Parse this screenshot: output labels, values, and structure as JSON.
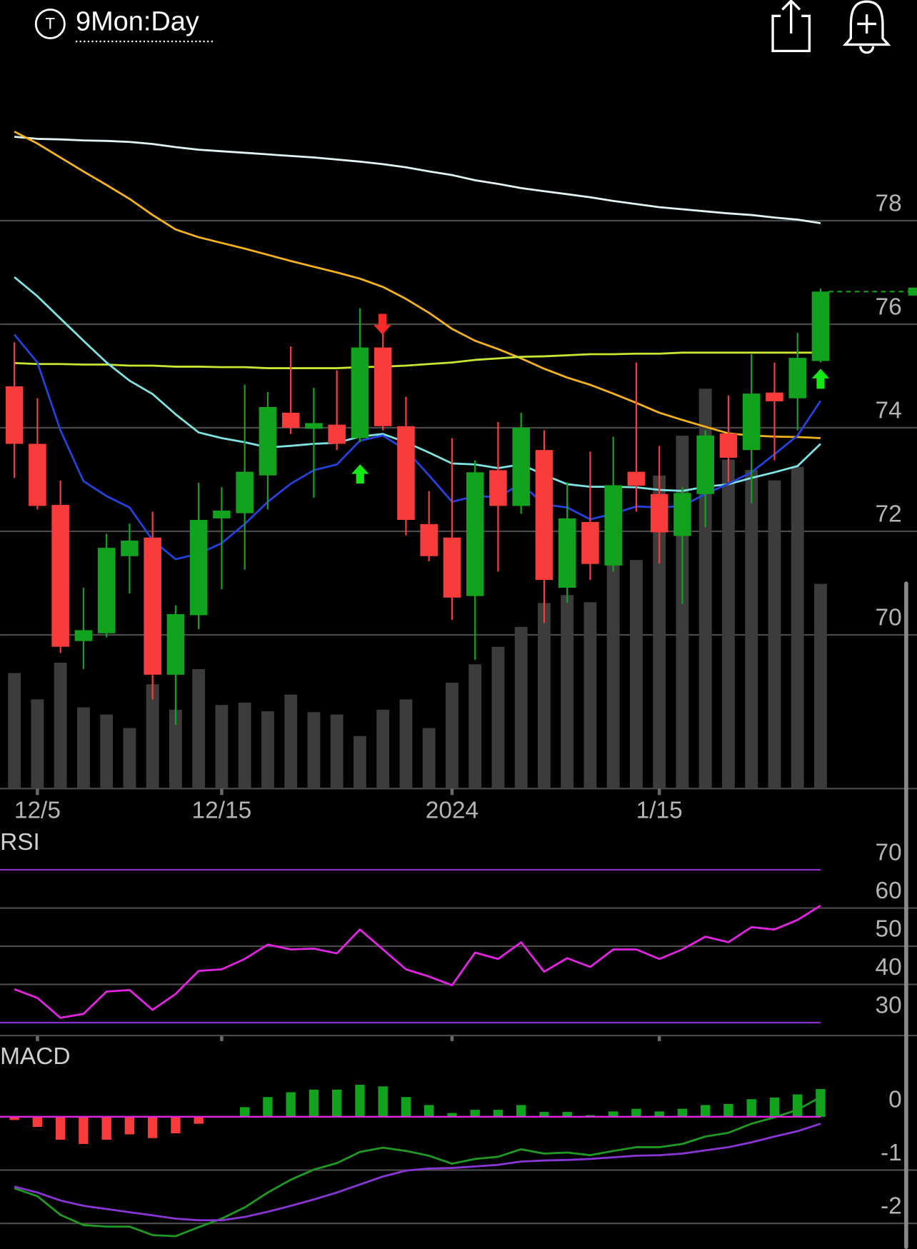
{
  "header": {
    "symbol_icon": "T",
    "timeframe": "9Mon:Day"
  },
  "chart_data": [
    {
      "type": "candlestick",
      "categories": [
        null,
        "12/5",
        null,
        null,
        null,
        null,
        null,
        null,
        null,
        "12/15",
        null,
        null,
        null,
        null,
        null,
        null,
        null,
        null,
        null,
        "2024",
        null,
        null,
        null,
        null,
        null,
        null,
        null,
        null,
        "1/15",
        null,
        null,
        null,
        null,
        null,
        null,
        null
      ],
      "open": [
        74.8,
        73.69,
        72.51,
        69.88,
        70.03,
        71.52,
        71.88,
        69.23,
        70.38,
        72.25,
        72.35,
        73.08,
        74.29,
        73.98,
        74.06,
        73.8,
        75.55,
        74.03,
        72.14,
        71.88,
        70.75,
        73.18,
        72.49,
        73.57,
        70.91,
        72.18,
        71.34,
        73.15,
        72.72,
        71.91,
        72.72,
        73.89,
        73.57,
        74.68,
        74.57,
        75.29
      ],
      "high": [
        75.65,
        74.57,
        72.98,
        70.91,
        71.95,
        72.15,
        72.38,
        70.57,
        72.94,
        72.85,
        74.83,
        74.69,
        75.57,
        74.77,
        75.11,
        76.31,
        75.95,
        74.6,
        72.78,
        73.8,
        73.37,
        74.11,
        74.29,
        73.95,
        72.95,
        73.54,
        73.83,
        75.26,
        73.65,
        72.85,
        73.95,
        74.62,
        75.42,
        75.26,
        75.83,
        76.69
      ],
      "low": [
        73.03,
        72.42,
        69.65,
        69.34,
        69.95,
        70.8,
        68.75,
        68.26,
        70.11,
        70.88,
        71.26,
        72.42,
        73.88,
        72.65,
        73.57,
        73.72,
        73.95,
        71.92,
        71.42,
        70.29,
        69.52,
        71.22,
        72.34,
        70.23,
        70.62,
        71.06,
        71.22,
        72.38,
        71.38,
        70.6,
        72.08,
        72.95,
        72.54,
        73.37,
        73.95,
        75.26
      ],
      "close": [
        73.69,
        72.49,
        69.77,
        70.09,
        71.68,
        71.82,
        69.23,
        70.4,
        72.22,
        72.4,
        73.15,
        74.4,
        74.0,
        74.09,
        73.69,
        75.55,
        74.03,
        72.22,
        71.52,
        70.72,
        73.14,
        72.49,
        74.0,
        71.06,
        72.25,
        71.37,
        72.89,
        72.88,
        71.98,
        72.74,
        73.85,
        73.42,
        74.66,
        74.51,
        75.35,
        76.63
      ],
      "volume": [
        145,
        112,
        158,
        102,
        93,
        76,
        131,
        99,
        150,
        105,
        108,
        97,
        118,
        96,
        93,
        66,
        99,
        112,
        76,
        133,
        156,
        178,
        203,
        233,
        243,
        234,
        283,
        287,
        393,
        443,
        502,
        413,
        400,
        387,
        404,
        257
      ],
      "up_color": "#12a31e",
      "down_color": "#f83b3b",
      "volume_color": "#3c3c3c",
      "series": [
        {
          "color": "#e2f3f3",
          "values": [
            79.62,
            79.58,
            79.57,
            79.55,
            79.54,
            79.52,
            79.48,
            79.42,
            79.37,
            79.34,
            79.31,
            79.28,
            79.25,
            79.22,
            79.18,
            79.14,
            79.09,
            79.03,
            78.95,
            78.88,
            78.78,
            78.71,
            78.63,
            78.57,
            78.51,
            78.45,
            78.38,
            78.32,
            78.26,
            78.22,
            78.18,
            78.14,
            78.11,
            78.06,
            78.02,
            77.95
          ]
        },
        {
          "color": "#f5b21e",
          "values": [
            79.72,
            79.49,
            79.22,
            78.95,
            78.69,
            78.42,
            78.11,
            77.83,
            77.68,
            77.57,
            77.46,
            77.34,
            77.22,
            77.11,
            77.0,
            76.88,
            76.72,
            76.49,
            76.22,
            75.91,
            75.68,
            75.52,
            75.34,
            75.14,
            74.97,
            74.83,
            74.66,
            74.48,
            74.29,
            74.15,
            74.02,
            73.89,
            73.85,
            73.83,
            73.82,
            73.8
          ]
        },
        {
          "color": "#c8e632",
          "values": [
            75.25,
            75.23,
            75.23,
            75.22,
            75.22,
            75.2,
            75.2,
            75.18,
            75.18,
            75.17,
            75.17,
            75.15,
            75.15,
            75.15,
            75.15,
            75.17,
            75.18,
            75.2,
            75.23,
            75.26,
            75.31,
            75.34,
            75.37,
            75.38,
            75.4,
            75.42,
            75.42,
            75.43,
            75.43,
            75.45,
            75.45,
            75.45,
            75.45,
            75.45,
            75.45,
            75.45
          ]
        },
        {
          "color": "#7fe3e3",
          "values": [
            76.91,
            76.54,
            76.11,
            75.68,
            75.26,
            74.91,
            74.65,
            74.26,
            73.91,
            73.8,
            73.72,
            73.62,
            73.65,
            73.69,
            73.71,
            73.83,
            73.88,
            73.72,
            73.52,
            73.31,
            73.29,
            73.22,
            73.29,
            73.09,
            72.91,
            72.86,
            72.86,
            72.85,
            72.8,
            72.78,
            72.86,
            72.91,
            73.03,
            73.14,
            73.26,
            73.69
          ]
        },
        {
          "color": "#2442dc",
          "values": [
            75.8,
            75.26,
            73.95,
            72.97,
            72.68,
            72.46,
            71.83,
            71.46,
            71.57,
            71.77,
            72.14,
            72.57,
            72.92,
            73.18,
            73.29,
            73.75,
            73.85,
            73.57,
            73.08,
            72.57,
            72.68,
            72.66,
            72.92,
            72.52,
            72.46,
            72.23,
            72.34,
            72.48,
            72.46,
            72.49,
            72.72,
            72.92,
            73.14,
            73.49,
            73.85,
            74.52
          ]
        }
      ],
      "ylim": [
        67,
        81
      ],
      "yticks": [
        70,
        72,
        74,
        76,
        78
      ],
      "grid": true
    },
    {
      "type": "line",
      "title": "RSI",
      "values": [
        38.75,
        36.46,
        31.25,
        32.29,
        38.13,
        38.54,
        33.33,
        37.5,
        43.54,
        43.96,
        46.67,
        50.42,
        49.17,
        49.38,
        48.13,
        54.38,
        49.17,
        43.96,
        42.08,
        39.79,
        48.33,
        46.67,
        51.04,
        43.33,
        46.88,
        44.58,
        49.17,
        49.17,
        46.67,
        49.17,
        52.5,
        51.04,
        55,
        54.38,
        56.88,
        60.63
      ],
      "color": "#e324e3",
      "band_color": "#8a2fc8",
      "ylim": [
        26,
        80
      ],
      "yticks": [
        30,
        40,
        50,
        60,
        70
      ],
      "grid": true
    },
    {
      "type": "bar",
      "title": "MACD",
      "values": [
        -0.06,
        -0.19,
        -0.43,
        -0.51,
        -0.43,
        -0.33,
        -0.4,
        -0.31,
        -0.13,
        0,
        0.18,
        0.37,
        0.46,
        0.51,
        0.51,
        0.6,
        0.57,
        0.37,
        0.22,
        0.07,
        0.13,
        0.13,
        0.22,
        0.09,
        0.09,
        0.03,
        0.1,
        0.15,
        0.1,
        0.15,
        0.22,
        0.24,
        0.33,
        0.36,
        0.42,
        0.52
      ],
      "up_color": "#12a31e",
      "down_color": "#f83b3b",
      "zero_line_color": "#e324e3",
      "series": [
        {
          "color": "#1f9a22",
          "values": [
            -1.34,
            -1.49,
            -1.84,
            -2.03,
            -2.06,
            -2.06,
            -2.22,
            -2.24,
            -2.07,
            -1.91,
            -1.7,
            -1.42,
            -1.18,
            -0.99,
            -0.87,
            -0.66,
            -0.58,
            -0.64,
            -0.73,
            -0.88,
            -0.79,
            -0.75,
            -0.61,
            -0.69,
            -0.67,
            -0.72,
            -0.64,
            -0.57,
            -0.57,
            -0.51,
            -0.37,
            -0.3,
            -0.13,
            -0.01,
            0.13,
            0.37
          ]
        },
        {
          "color": "#8a35d6",
          "values": [
            -1.31,
            -1.42,
            -1.57,
            -1.67,
            -1.73,
            -1.79,
            -1.85,
            -1.91,
            -1.94,
            -1.94,
            -1.88,
            -1.78,
            -1.67,
            -1.55,
            -1.42,
            -1.27,
            -1.12,
            -1.01,
            -0.97,
            -0.96,
            -0.93,
            -0.9,
            -0.84,
            -0.82,
            -0.81,
            -0.79,
            -0.76,
            -0.73,
            -0.72,
            -0.69,
            -0.63,
            -0.57,
            -0.48,
            -0.37,
            -0.27,
            -0.13
          ]
        }
      ],
      "ylim": [
        -2.45,
        1.3
      ],
      "yticks": [
        -2,
        -1,
        0
      ],
      "grid": true
    }
  ]
}
